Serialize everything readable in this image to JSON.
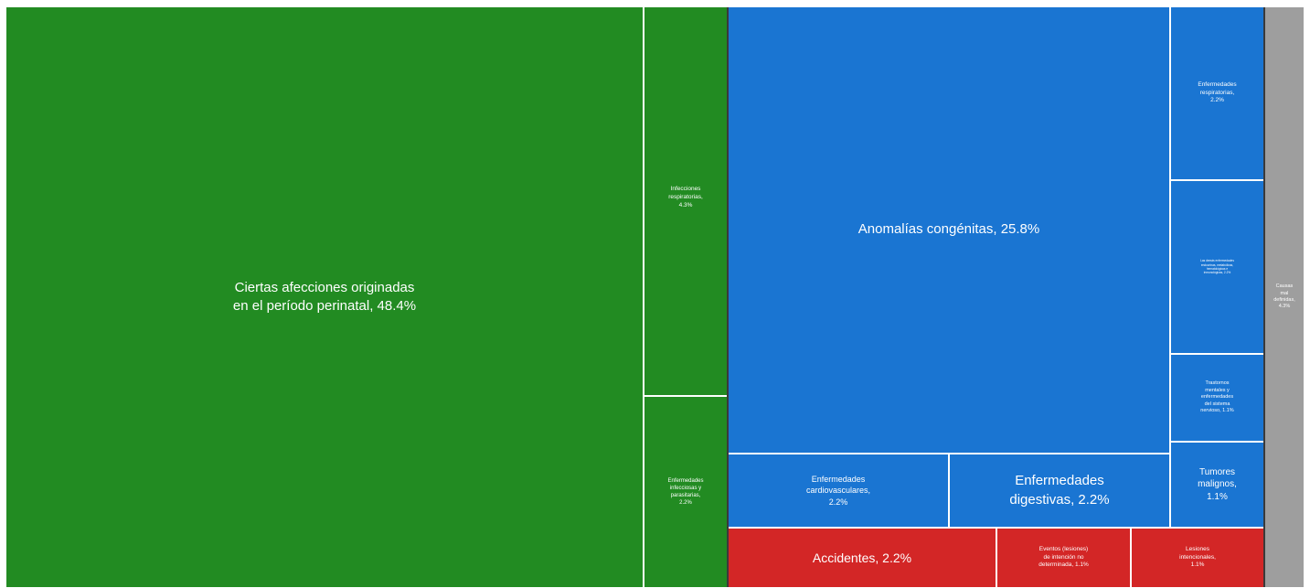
{
  "chart_data": {
    "type": "treemap",
    "groups": [
      {
        "color": "#228b22",
        "items": [
          {
            "id": "perinatal",
            "label_lines": [
              "Ciertas afecciones originadas",
              "en el período perinatal, 48.4%"
            ],
            "value": 48.4
          },
          {
            "id": "resp-inf",
            "label_lines": [
              "Infecciones",
              "respiratorias,",
              "4.3%"
            ],
            "value": 4.3
          },
          {
            "id": "infecciosas",
            "label_lines": [
              "Enfermedades",
              "infecciosas y",
              "parasitarias,",
              "2.2%"
            ],
            "value": 2.2
          }
        ]
      },
      {
        "color": "#1a75d2",
        "items": [
          {
            "id": "anomalias",
            "label_lines": [
              "Anomalías congénitas, 25.8%"
            ],
            "value": 25.8
          },
          {
            "id": "cardio",
            "label_lines": [
              "Enfermedades",
              "cardiovasculares,",
              "2.2%"
            ],
            "value": 2.2
          },
          {
            "id": "digestivas",
            "label_lines": [
              "Enfermedades",
              "digestivas, 2.2%"
            ],
            "value": 2.2
          },
          {
            "id": "resp-enf",
            "label_lines": [
              "Enfermedades",
              "respiratorias,",
              "2.2%"
            ],
            "value": 2.2
          },
          {
            "id": "endocrinas",
            "label_lines": [
              "Las demás enfermedades",
              "endocrinas, metabólicas,",
              "hematológicas e",
              "inmunológicas, 2.2%"
            ],
            "value": 2.2
          },
          {
            "id": "mentales",
            "label_lines": [
              "Trastornos",
              "mentales y",
              "enfermedades",
              "del sistema",
              "nervioso, 1.1%"
            ],
            "value": 1.1
          },
          {
            "id": "tumores",
            "label_lines": [
              "Tumores",
              "malignos,",
              "1.1%"
            ],
            "value": 1.1
          }
        ]
      },
      {
        "color": "#d32626",
        "items": [
          {
            "id": "accidentes",
            "label_lines": [
              "Accidentes, 2.2%"
            ],
            "value": 2.2
          },
          {
            "id": "eventos",
            "label_lines": [
              "Eventos (lesiones)",
              "de intención no",
              "determinada, 1.1%"
            ],
            "value": 1.1
          },
          {
            "id": "lesiones",
            "label_lines": [
              "Lesiones",
              "intencionales,",
              "1.1%"
            ],
            "value": 1.1
          }
        ]
      },
      {
        "color": "#9e9e9e",
        "items": [
          {
            "id": "mal-definidas",
            "label_lines": [
              "Causas",
              "mal",
              "definidas,",
              "4.3%"
            ],
            "value": 4.3
          }
        ]
      }
    ]
  }
}
